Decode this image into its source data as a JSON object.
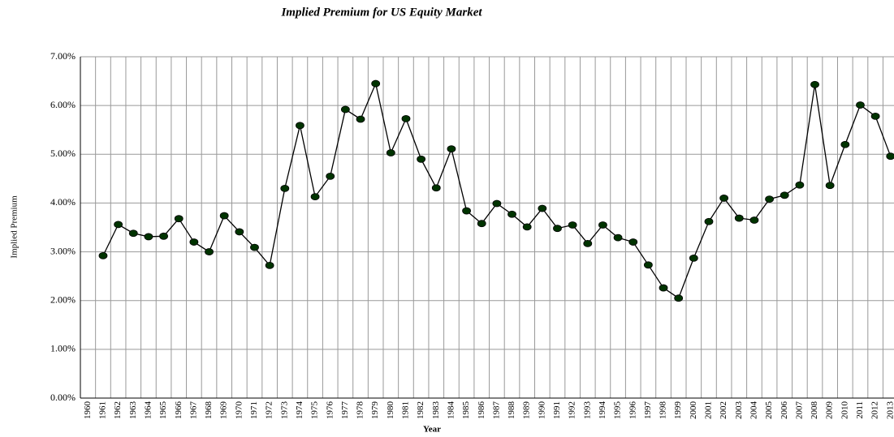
{
  "chart_data": {
    "type": "line",
    "title": "Implied Premium for US Equity Market",
    "x_label": "Year",
    "y_label": "Implied Premium",
    "categories": [
      "1960",
      "1961",
      "1962",
      "1963",
      "1964",
      "1965",
      "1966",
      "1967",
      "1968",
      "1969",
      "1970",
      "1971",
      "1972",
      "1973",
      "1974",
      "1975",
      "1976",
      "1977",
      "1978",
      "1979",
      "1980",
      "1981",
      "1982",
      "1983",
      "1984",
      "1985",
      "1986",
      "1987",
      "1988",
      "1989",
      "1990",
      "1991",
      "1992",
      "1993",
      "1994",
      "1995",
      "1996",
      "1997",
      "1998",
      "1999",
      "2000",
      "2001",
      "2002",
      "2003",
      "2004",
      "2005",
      "2006",
      "2007",
      "2008",
      "2009",
      "2010",
      "2011",
      "2012",
      "2013"
    ],
    "series": [
      {
        "name": "Implied Premium",
        "color": "#000000",
        "marker_color": "#003300",
        "values": [
          null,
          2.92,
          3.56,
          3.38,
          3.31,
          3.32,
          3.68,
          3.2,
          3.0,
          3.74,
          3.41,
          3.09,
          2.72,
          4.3,
          5.59,
          4.13,
          4.55,
          5.92,
          5.72,
          6.45,
          5.03,
          5.73,
          4.9,
          4.31,
          5.11,
          3.84,
          3.58,
          3.99,
          3.77,
          3.51,
          3.89,
          3.48,
          3.55,
          3.17,
          3.55,
          3.29,
          3.2,
          2.73,
          2.26,
          2.05,
          2.87,
          3.62,
          4.1,
          3.69,
          3.65,
          4.08,
          4.16,
          4.37,
          6.43,
          4.36,
          5.2,
          6.01,
          5.78,
          4.96
        ]
      }
    ],
    "ylim": [
      0,
      7
    ],
    "yticks": [
      {
        "value": 0,
        "label": "0.00%"
      },
      {
        "value": 1,
        "label": "1.00%"
      },
      {
        "value": 2,
        "label": "2.00%"
      },
      {
        "value": 3,
        "label": "3.00%"
      },
      {
        "value": 4,
        "label": "4.00%"
      },
      {
        "value": 5,
        "label": "5.00%"
      },
      {
        "value": 6,
        "label": "6.00%"
      },
      {
        "value": 7,
        "label": "7.00%"
      }
    ],
    "grid": true
  }
}
